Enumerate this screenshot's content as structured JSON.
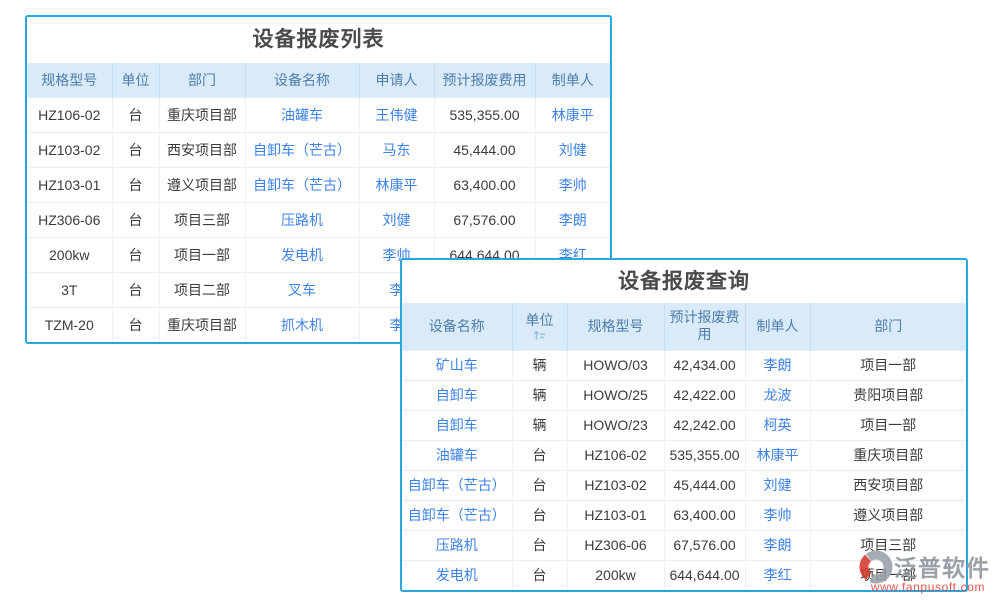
{
  "window1": {
    "title": "设备报废列表",
    "columns": [
      "规格型号",
      "单位",
      "部门",
      "设备名称",
      "申请人",
      "预计报废费用",
      "制单人"
    ],
    "rows": [
      [
        "HZ106-02",
        "台",
        "重庆项目部",
        "油罐车",
        "王伟健",
        "535,355.00",
        "林康平"
      ],
      [
        "HZ103-02",
        "台",
        "西安项目部",
        "自卸车（芒古）",
        "马东",
        "45,444.00",
        "刘健"
      ],
      [
        "HZ103-01",
        "台",
        "遵义项目部",
        "自卸车（芒古）",
        "林康平",
        "63,400.00",
        "李帅"
      ],
      [
        "HZ306-06",
        "台",
        "项目三部",
        "压路机",
        "刘健",
        "67,576.00",
        "李朗"
      ],
      [
        "200kw",
        "台",
        "项目一部",
        "发电机",
        "李帅",
        "644,644.00",
        "李红"
      ],
      [
        "3T",
        "台",
        "项目二部",
        "叉车",
        "李",
        "",
        ""
      ],
      [
        "TZM-20",
        "台",
        "重庆项目部",
        "抓木机",
        "李",
        "",
        ""
      ]
    ]
  },
  "window2": {
    "title": "设备报废查询",
    "columns": [
      "设备名称",
      "单位",
      "规格型号",
      "预计报废费用",
      "制单人",
      "部门"
    ],
    "sort_icon": "sort-icon",
    "rows": [
      [
        "矿山车",
        "辆",
        "HOWO/03",
        "42,434.00",
        "李朗",
        "项目一部"
      ],
      [
        "自卸车",
        "辆",
        "HOWO/25",
        "42,422.00",
        "龙波",
        "贵阳项目部"
      ],
      [
        "自卸车",
        "辆",
        "HOWO/23",
        "42,242.00",
        "柯英",
        "项目一部"
      ],
      [
        "油罐车",
        "台",
        "HZ106-02",
        "535,355.00",
        "林康平",
        "重庆项目部"
      ],
      [
        "自卸车（芒古）",
        "台",
        "HZ103-02",
        "45,444.00",
        "刘健",
        "西安项目部"
      ],
      [
        "自卸车（芒古）",
        "台",
        "HZ103-01",
        "63,400.00",
        "李帅",
        "遵义项目部"
      ],
      [
        "压路机",
        "台",
        "HZ306-06",
        "67,576.00",
        "李朗",
        "项目三部"
      ],
      [
        "发电机",
        "台",
        "200kw",
        "644,644.00",
        "李红",
        "项目一部"
      ]
    ]
  },
  "watermark": {
    "brand": "泛普软件",
    "url": "www.fanpusoft.com",
    "logo": "fanpu-logo-icon"
  },
  "colors": {
    "window_border": "#29a7e2",
    "header_bg": "#d9eaf8",
    "header_text": "#4f7dad",
    "link_text": "#3d82e8",
    "body_text": "#3c3c3c",
    "title_text": "#4a4a4a",
    "watermark_gray": "#8d939b",
    "watermark_red": "#e04038"
  }
}
